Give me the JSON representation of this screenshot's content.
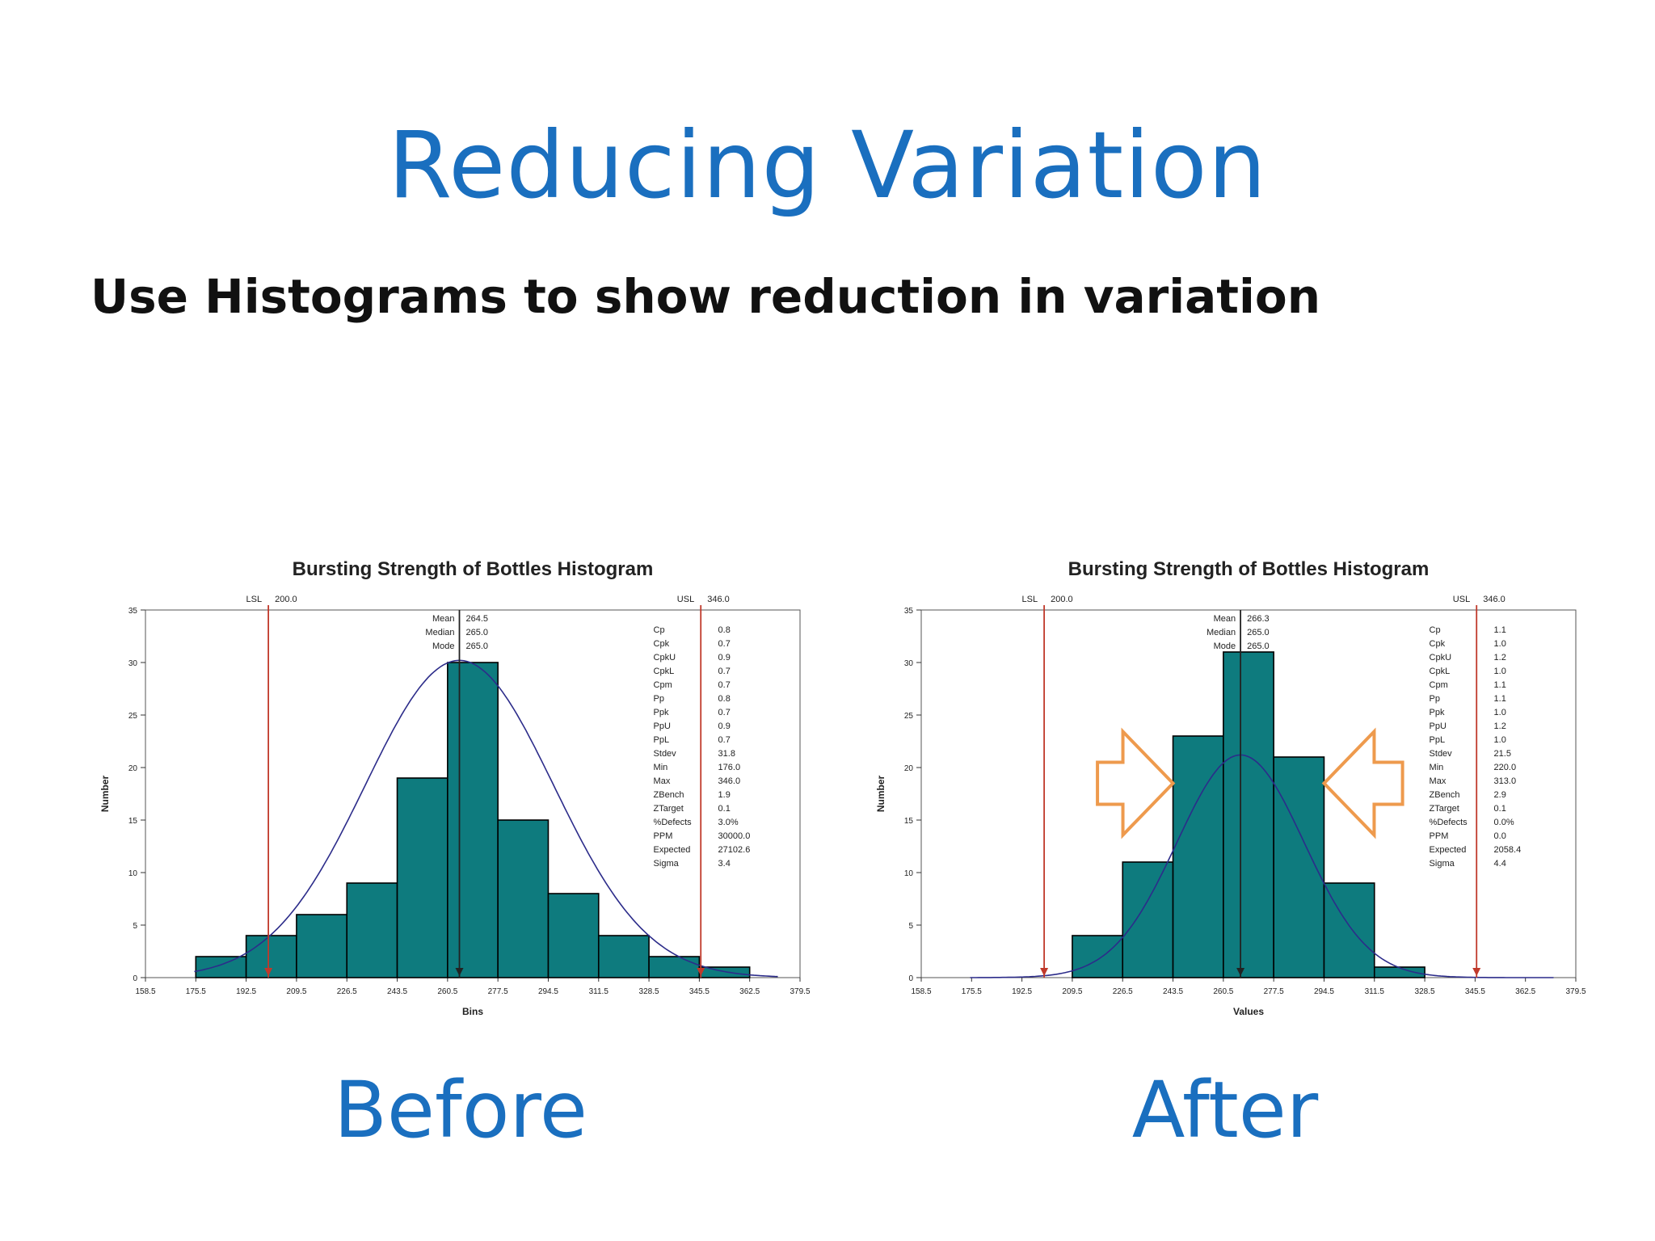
{
  "slide": {
    "title": "Reducing Variation",
    "subtitle": "Use Histograms to show reduction in variation",
    "captions": {
      "before": "Before",
      "after": "After"
    }
  },
  "colors": {
    "bar": "#0e7b7e",
    "curve": "#2c2c8a",
    "spec": "#c0392b",
    "mean": "#222222",
    "arrow": "#ee9a4d"
  },
  "chart_data": [
    {
      "id": "before",
      "type": "bar",
      "title": "Bursting Strength of Bottles Histogram",
      "xlabel": "Bins",
      "ylabel": "Number",
      "x_ticks": [
        "158.5",
        "175.5",
        "192.5",
        "209.5",
        "226.5",
        "243.5",
        "260.5",
        "277.5",
        "294.5",
        "311.5",
        "328.5",
        "345.5",
        "362.5",
        "379.5"
      ],
      "y_ticks": [
        0,
        5,
        10,
        15,
        20,
        25,
        30,
        35
      ],
      "xlim": [
        158.5,
        379.5
      ],
      "ylim": [
        0,
        35
      ],
      "bins": [
        {
          "x0": 175.5,
          "x1": 192.5,
          "count": 2
        },
        {
          "x0": 192.5,
          "x1": 209.5,
          "count": 4
        },
        {
          "x0": 209.5,
          "x1": 226.5,
          "count": 6
        },
        {
          "x0": 226.5,
          "x1": 243.5,
          "count": 9
        },
        {
          "x0": 243.5,
          "x1": 260.5,
          "count": 19
        },
        {
          "x0": 260.5,
          "x1": 277.5,
          "count": 30
        },
        {
          "x0": 277.5,
          "x1": 294.5,
          "count": 15
        },
        {
          "x0": 294.5,
          "x1": 311.5,
          "count": 8
        },
        {
          "x0": 311.5,
          "x1": 328.5,
          "count": 4
        },
        {
          "x0": 328.5,
          "x1": 345.5,
          "count": 2
        },
        {
          "x0": 345.5,
          "x1": 362.5,
          "count": 1
        }
      ],
      "curve": {
        "mean": 264.5,
        "sd": 31.8,
        "peak": 30.2
      },
      "spec_limits": {
        "lsl": 200.0,
        "usl": 346.0,
        "lsl_label": "LSL",
        "usl_label": "USL",
        "lsl_value": "200.0",
        "usl_value": "346.0"
      },
      "center": [
        {
          "label": "Mean",
          "value": "264.5"
        },
        {
          "label": "Median",
          "value": "265.0"
        },
        {
          "label": "Mode",
          "value": "265.0"
        }
      ],
      "stats": [
        {
          "label": "Cp",
          "value": "0.8"
        },
        {
          "label": "Cpk",
          "value": "0.7"
        },
        {
          "label": "CpkU",
          "value": "0.9"
        },
        {
          "label": "CpkL",
          "value": "0.7"
        },
        {
          "label": "Cpm",
          "value": "0.7"
        },
        {
          "label": "Pp",
          "value": "0.8"
        },
        {
          "label": "Ppk",
          "value": "0.7"
        },
        {
          "label": "PpU",
          "value": "0.9"
        },
        {
          "label": "PpL",
          "value": "0.7"
        },
        {
          "label": "Stdev",
          "value": "31.8"
        },
        {
          "label": "Min",
          "value": "176.0"
        },
        {
          "label": "Max",
          "value": "346.0"
        },
        {
          "label": "ZBench",
          "value": "1.9"
        },
        {
          "label": "ZTarget",
          "value": "0.1"
        },
        {
          "label": "%Defects",
          "value": "3.0%"
        },
        {
          "label": "PPM",
          "value": "30000.0"
        },
        {
          "label": "Expected",
          "value": "27102.6"
        },
        {
          "label": "Sigma",
          "value": "3.4"
        }
      ],
      "arrows": false
    },
    {
      "id": "after",
      "type": "bar",
      "title": "Bursting Strength of Bottles Histogram",
      "xlabel": "Values",
      "ylabel": "Number",
      "x_ticks": [
        "158.5",
        "175.5",
        "192.5",
        "209.5",
        "226.5",
        "243.5",
        "260.5",
        "277.5",
        "294.5",
        "311.5",
        "328.5",
        "345.5",
        "362.5",
        "379.5"
      ],
      "y_ticks": [
        0,
        5,
        10,
        15,
        20,
        25,
        30,
        35
      ],
      "xlim": [
        158.5,
        379.5
      ],
      "ylim": [
        0,
        35
      ],
      "bins": [
        {
          "x0": 209.5,
          "x1": 226.5,
          "count": 4
        },
        {
          "x0": 226.5,
          "x1": 243.5,
          "count": 11
        },
        {
          "x0": 243.5,
          "x1": 260.5,
          "count": 23
        },
        {
          "x0": 260.5,
          "x1": 277.5,
          "count": 31
        },
        {
          "x0": 277.5,
          "x1": 294.5,
          "count": 21
        },
        {
          "x0": 294.5,
          "x1": 311.5,
          "count": 9
        },
        {
          "x0": 311.5,
          "x1": 328.5,
          "count": 1
        }
      ],
      "curve": {
        "mean": 266.3,
        "sd": 21.5,
        "peak": 21.2
      },
      "spec_limits": {
        "lsl": 200.0,
        "usl": 346.0,
        "lsl_label": "LSL",
        "usl_label": "USL",
        "lsl_value": "200.0",
        "usl_value": "346.0"
      },
      "center": [
        {
          "label": "Mean",
          "value": "266.3"
        },
        {
          "label": "Median",
          "value": "265.0"
        },
        {
          "label": "Mode",
          "value": "265.0"
        }
      ],
      "stats": [
        {
          "label": "Cp",
          "value": "1.1"
        },
        {
          "label": "Cpk",
          "value": "1.0"
        },
        {
          "label": "CpkU",
          "value": "1.2"
        },
        {
          "label": "CpkL",
          "value": "1.0"
        },
        {
          "label": "Cpm",
          "value": "1.1"
        },
        {
          "label": "Pp",
          "value": "1.1"
        },
        {
          "label": "Ppk",
          "value": "1.0"
        },
        {
          "label": "PpU",
          "value": "1.2"
        },
        {
          "label": "PpL",
          "value": "1.0"
        },
        {
          "label": "Stdev",
          "value": "21.5"
        },
        {
          "label": "Min",
          "value": "220.0"
        },
        {
          "label": "Max",
          "value": "313.0"
        },
        {
          "label": "ZBench",
          "value": "2.9"
        },
        {
          "label": "ZTarget",
          "value": "0.1"
        },
        {
          "label": "%Defects",
          "value": "0.0%"
        },
        {
          "label": "PPM",
          "value": "0.0"
        },
        {
          "label": "Expected",
          "value": "2058.4"
        },
        {
          "label": "Sigma",
          "value": "4.4"
        }
      ],
      "arrows": true
    }
  ]
}
